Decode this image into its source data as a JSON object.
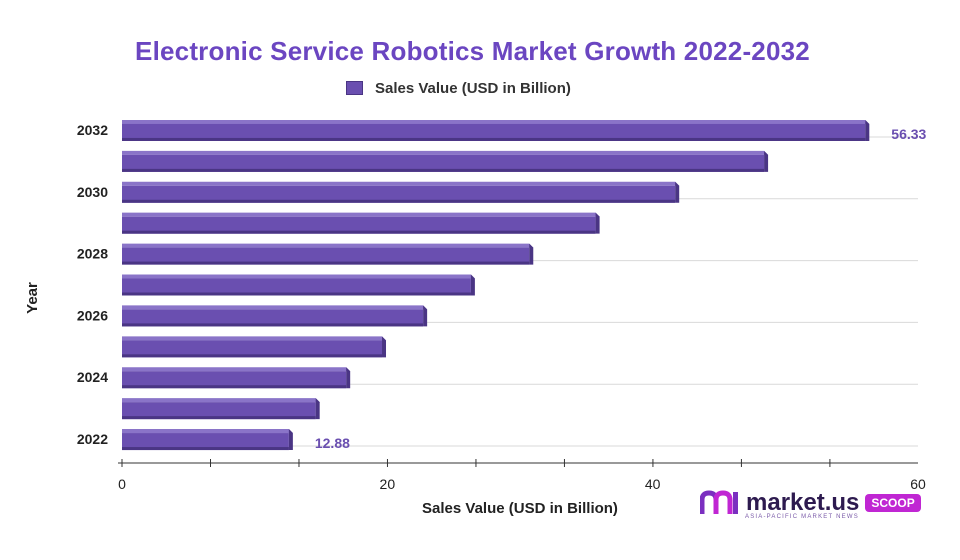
{
  "chart_data": {
    "type": "bar",
    "orientation": "horizontal",
    "title": "Electronic Service Robotics Market Growth 2022-2032",
    "xlabel": "Sales Value (USD in Billion)",
    "ylabel": "Year",
    "xlim": [
      0,
      60
    ],
    "x_ticks": [
      "0",
      "20",
      "40",
      "60"
    ],
    "grid": true,
    "legend": {
      "position": "top-center",
      "entries": [
        "Sales Value (USD in Billion)"
      ]
    },
    "categories": [
      "2022",
      "2023",
      "2024",
      "2025",
      "2026",
      "2027",
      "2028",
      "2029",
      "2030",
      "2031",
      "2032"
    ],
    "y_tick_labels": [
      "2022",
      "",
      "2024",
      "",
      "2026",
      "",
      "2028",
      "",
      "2030",
      "",
      "2032"
    ],
    "series": [
      {
        "name": "Sales Value (USD in Billion)",
        "values": [
          12.88,
          14.9,
          17.2,
          19.9,
          23.0,
          26.6,
          31.0,
          36.0,
          42.0,
          48.7,
          56.33
        ]
      }
    ],
    "data_labels": [
      {
        "category": "2022",
        "text": "12.88"
      },
      {
        "category": "2032",
        "text": "56.33"
      }
    ],
    "colors": {
      "bar": "#6a4fb0",
      "bar_dark": "#4a3584",
      "bar_top": "#8a74c8",
      "title": "#6b46c1"
    }
  },
  "brand": {
    "name": "market.us",
    "tag": "SCOOP",
    "subtitle": "ASIA-PACIFIC MARKET NEWS"
  }
}
